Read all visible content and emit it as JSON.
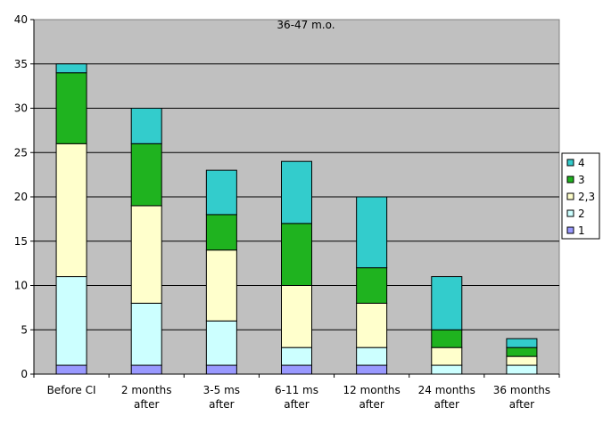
{
  "chart_data": {
    "type": "bar",
    "stacked": true,
    "title": "36-47 m.o.",
    "xlabel": "",
    "ylabel": "",
    "ylim": [
      0,
      40
    ],
    "yticks": [
      0,
      5,
      10,
      15,
      20,
      25,
      30,
      35,
      40
    ],
    "grid": true,
    "legend_position": "right",
    "plot_background": "#c0c0c0",
    "categories": [
      [
        "Before CI"
      ],
      [
        "2 months",
        "after"
      ],
      [
        "3-5 ms",
        "after"
      ],
      [
        "6-11 ms",
        "after"
      ],
      [
        "12 months",
        "after"
      ],
      [
        "24 months",
        "after"
      ],
      [
        "36 months",
        "after"
      ]
    ],
    "series": [
      {
        "name": "1",
        "color": "#9999ff",
        "values": [
          1,
          1,
          1,
          1,
          1,
          0,
          0
        ]
      },
      {
        "name": "2",
        "color": "#ccffff",
        "values": [
          10,
          7,
          5,
          2,
          2,
          1,
          1
        ]
      },
      {
        "name": "2,3",
        "color": "#ffffcc",
        "values": [
          15,
          11,
          8,
          7,
          5,
          2,
          1
        ]
      },
      {
        "name": "3",
        "color": "#1fb31f",
        "values": [
          8,
          7,
          4,
          7,
          4,
          2,
          1
        ]
      },
      {
        "name": "4",
        "color": "#33cccc",
        "values": [
          1,
          4,
          5,
          7,
          8,
          6,
          1
        ]
      }
    ],
    "legend_order": [
      "4",
      "3",
      "2,3",
      "2",
      "1"
    ]
  }
}
